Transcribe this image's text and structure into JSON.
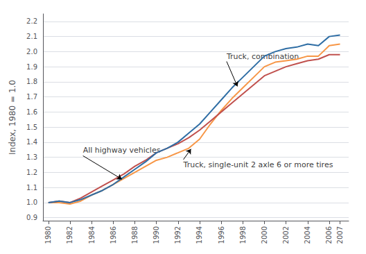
{
  "chart_data": {
    "type": "line",
    "ylabel": "Index, 1980 = 1.0",
    "xlim": [
      1979.5,
      2007.8
    ],
    "ylim": [
      0.88,
      2.25
    ],
    "xticks": [
      1980,
      1982,
      1984,
      1986,
      1988,
      1990,
      1992,
      1994,
      1996,
      1998,
      2000,
      2002,
      2004,
      2006,
      2007
    ],
    "yticks": [
      0.9,
      {
        "value": 1.0,
        "label": "1.0"
      },
      1.1,
      1.2,
      1.3,
      1.4,
      1.5,
      1.6,
      1.7,
      1.8,
      1.9,
      {
        "value": 2.0,
        "label": "2.0"
      },
      2.1,
      2.2
    ],
    "grid": "y",
    "x": [
      1980,
      1981,
      1982,
      1983,
      1984,
      1985,
      1986,
      1987,
      1988,
      1989,
      1990,
      1991,
      1992,
      1993,
      1994,
      1995,
      1996,
      1997,
      1998,
      1999,
      2000,
      2001,
      2002,
      2003,
      2004,
      2005,
      2006,
      2007
    ],
    "series": [
      {
        "name": "Truck, single-unit 2 axle 6 or more tires",
        "color": "#f79646",
        "values": [
          1.0,
          1.0,
          0.99,
          1.01,
          1.05,
          1.08,
          1.12,
          1.16,
          1.2,
          1.24,
          1.28,
          1.3,
          1.33,
          1.36,
          1.42,
          1.52,
          1.61,
          1.69,
          1.76,
          1.83,
          1.9,
          1.93,
          1.94,
          1.95,
          1.97,
          1.97,
          2.04,
          2.05
        ]
      },
      {
        "name": "All highway vehicles",
        "color": "#c0504d",
        "values": [
          1.0,
          1.01,
          1.0,
          1.03,
          1.07,
          1.11,
          1.15,
          1.19,
          1.24,
          1.28,
          1.33,
          1.36,
          1.39,
          1.43,
          1.48,
          1.54,
          1.6,
          1.66,
          1.72,
          1.78,
          1.84,
          1.87,
          1.9,
          1.92,
          1.94,
          1.95,
          1.98,
          1.98
        ]
      },
      {
        "name": "Truck, combination",
        "color": "#2e6da4",
        "values": [
          1.0,
          1.01,
          1.0,
          1.02,
          1.05,
          1.08,
          1.12,
          1.17,
          1.22,
          1.27,
          1.33,
          1.36,
          1.4,
          1.46,
          1.52,
          1.6,
          1.68,
          1.76,
          1.83,
          1.9,
          1.97,
          2.0,
          2.02,
          2.03,
          2.05,
          2.04,
          2.1,
          2.11
        ]
      }
    ],
    "annotations": [
      {
        "text": "Truck, combination",
        "xy": [
          1997.5,
          1.77
        ],
        "xytext": [
          1996.5,
          1.935
        ]
      },
      {
        "text": "All highway vehicles",
        "xy": [
          1986.8,
          1.155
        ],
        "xytext": [
          1983.2,
          1.31
        ]
      },
      {
        "text": "Truck, single-unit 2 axle 6 or more tires",
        "xy": [
          1993.2,
          1.355
        ],
        "xytext": [
          1992.5,
          1.285
        ]
      }
    ]
  }
}
